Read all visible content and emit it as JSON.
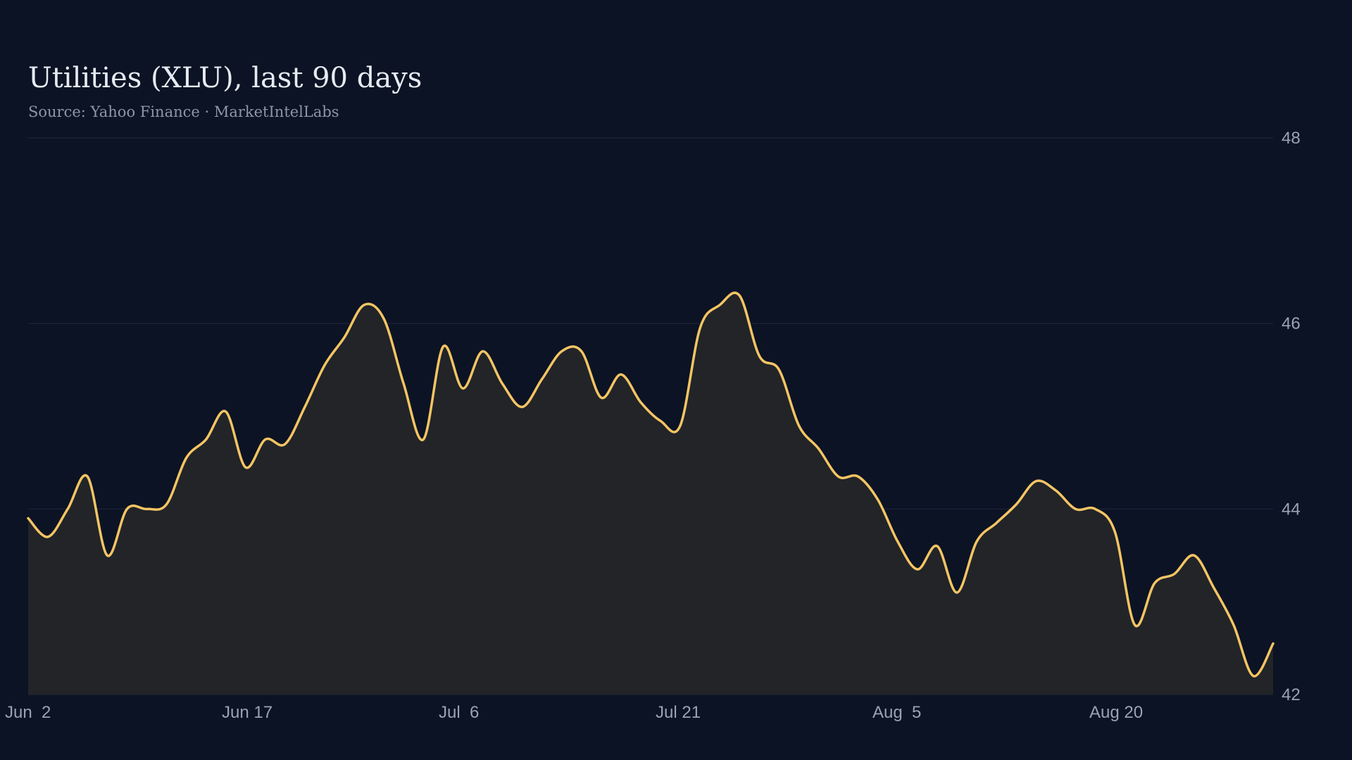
{
  "chart_data": {
    "type": "area",
    "title": "Utilities (XLU), last 90 days",
    "subtitle": "Source: Yahoo Finance · MarketIntelLabs",
    "xlabel": "",
    "ylabel": "",
    "x_ticks": [
      "Jun  2",
      "Jun 17",
      "Jul  6",
      "Jul 21",
      "Aug  5",
      "Aug 20"
    ],
    "y_ticks": [
      42,
      44,
      46,
      48
    ],
    "ylim": [
      42,
      48
    ],
    "grid": true,
    "y_axis_side": "right",
    "line_color": "#f5c563",
    "fill_color": "#222428",
    "series": [
      {
        "values": [
          43.9,
          43.7,
          44.0,
          44.35,
          43.5,
          44.0,
          44.0,
          44.05,
          44.55,
          44.75,
          45.05,
          44.45,
          44.75,
          44.7,
          45.1,
          45.55,
          45.85,
          46.2,
          46.05,
          45.35,
          44.75,
          45.75,
          45.3,
          45.7,
          45.35,
          45.1,
          45.4,
          45.7,
          45.7,
          45.2,
          45.45,
          45.15,
          44.95,
          44.9,
          45.95,
          46.2,
          46.3,
          45.65,
          45.5,
          44.9,
          44.65,
          44.35,
          44.35,
          44.1,
          43.65,
          43.35,
          43.6,
          43.1,
          43.65,
          43.85,
          44.05,
          44.3,
          44.2,
          44.0,
          44.0,
          43.75,
          42.75,
          43.2,
          43.3,
          43.5,
          43.15,
          42.75,
          42.2,
          42.55
        ]
      }
    ]
  }
}
